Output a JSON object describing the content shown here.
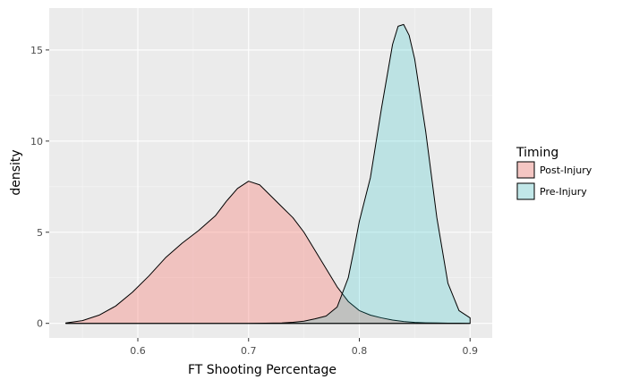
{
  "chart_data": {
    "type": "area",
    "xlabel": "FT Shooting Percentage",
    "ylabel": "density",
    "xlim": [
      0.52,
      0.92
    ],
    "ylim": [
      -0.8,
      17.3
    ],
    "x_ticks": [
      0.6,
      0.7,
      0.8,
      0.9
    ],
    "x_tick_labels": [
      "0.6",
      "0.7",
      "0.8",
      "0.9"
    ],
    "y_ticks": [
      0,
      5,
      10,
      15
    ],
    "y_tick_labels": [
      "0",
      "5",
      "10",
      "15"
    ],
    "grid": true,
    "background": "#ebebeb",
    "legend": {
      "title": "Timing",
      "placement": "right"
    },
    "series": [
      {
        "name": "Post-Injury",
        "color": "#f8766d",
        "fill_opacity": 0.35,
        "x": [
          0.535,
          0.55,
          0.565,
          0.58,
          0.595,
          0.61,
          0.625,
          0.64,
          0.655,
          0.67,
          0.68,
          0.69,
          0.7,
          0.71,
          0.72,
          0.73,
          0.74,
          0.75,
          0.76,
          0.77,
          0.78,
          0.79,
          0.8,
          0.81,
          0.82,
          0.83,
          0.84,
          0.85,
          0.86,
          0.87,
          0.88,
          0.89,
          0.9
        ],
        "values": [
          0.02,
          0.15,
          0.45,
          0.95,
          1.7,
          2.6,
          3.6,
          4.4,
          5.1,
          5.9,
          6.7,
          7.4,
          7.8,
          7.6,
          7.0,
          6.4,
          5.8,
          5.0,
          4.0,
          3.0,
          2.0,
          1.2,
          0.7,
          0.45,
          0.3,
          0.18,
          0.1,
          0.05,
          0.03,
          0.02,
          0.01,
          0.01,
          0.0
        ]
      },
      {
        "name": "Pre-Injury",
        "color": "#00bfc4",
        "fill_opacity": 0.2,
        "x": [
          0.535,
          0.55,
          0.6,
          0.65,
          0.7,
          0.73,
          0.74,
          0.75,
          0.76,
          0.77,
          0.78,
          0.79,
          0.795,
          0.8,
          0.81,
          0.82,
          0.83,
          0.835,
          0.84,
          0.845,
          0.85,
          0.86,
          0.87,
          0.88,
          0.89,
          0.9
        ],
        "values": [
          0.0,
          0.0,
          0.0,
          0.0,
          0.0,
          0.02,
          0.06,
          0.12,
          0.25,
          0.4,
          0.9,
          2.5,
          4.0,
          5.6,
          8.0,
          11.8,
          15.3,
          16.3,
          16.4,
          15.8,
          14.5,
          10.5,
          5.8,
          2.2,
          0.7,
          0.3
        ]
      }
    ]
  }
}
